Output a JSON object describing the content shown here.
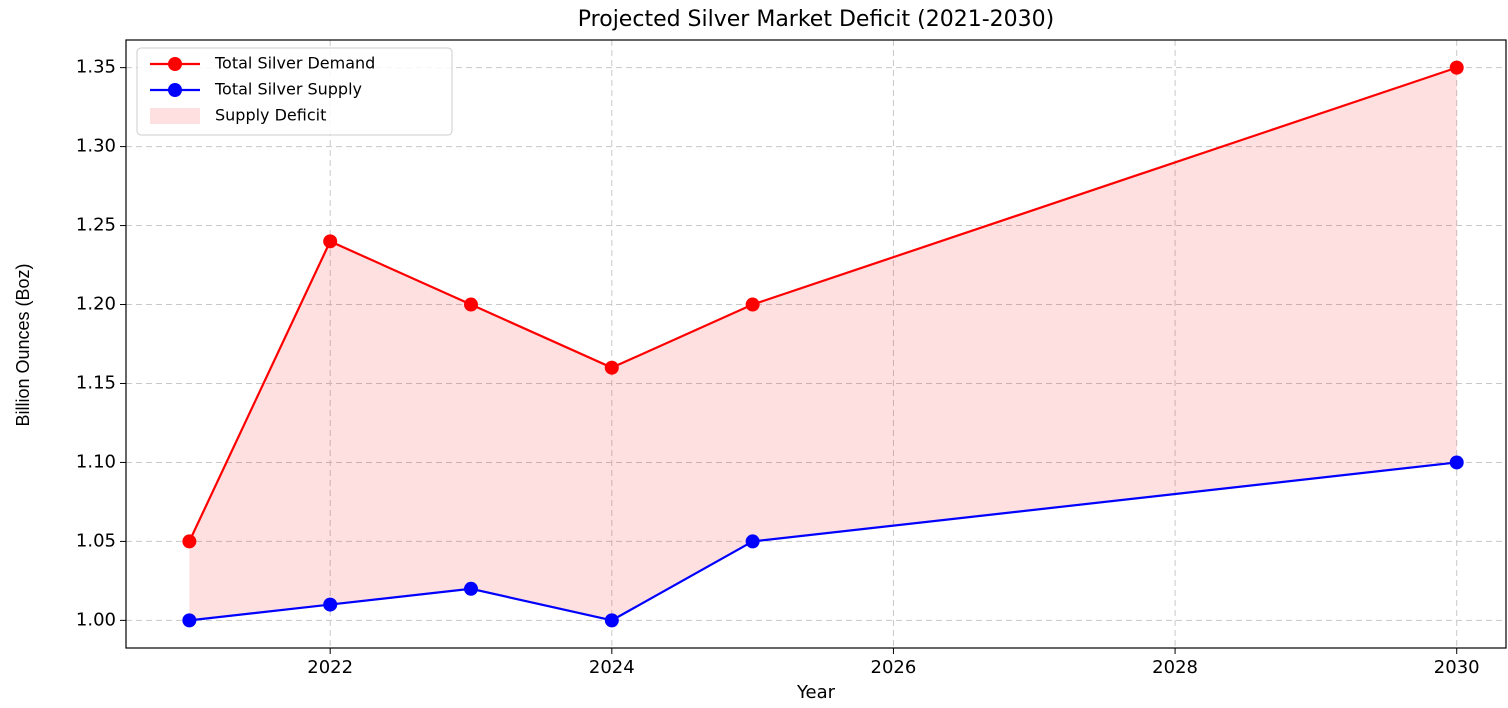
{
  "chart_data": {
    "type": "line",
    "title": "Projected Silver Market Deficit (2021-2030)",
    "xlabel": "Year",
    "ylabel": "Billion Ounces (Boz)",
    "x": [
      2021,
      2022,
      2023,
      2024,
      2025,
      2030
    ],
    "series": [
      {
        "name": "Total Silver Demand",
        "color": "#ff0000",
        "values": [
          1.05,
          1.24,
          1.2,
          1.16,
          1.2,
          1.35
        ]
      },
      {
        "name": "Total Silver Supply",
        "color": "#0000ff",
        "values": [
          1.0,
          1.01,
          1.02,
          1.0,
          1.05,
          1.1
        ]
      }
    ],
    "fill_between": {
      "name": "Supply Deficit",
      "color": "#ff0000",
      "alpha": 0.12
    },
    "xlim": [
      2020.55,
      2030.35
    ],
    "xticks": [
      2022,
      2024,
      2026,
      2028,
      2030
    ],
    "ylim": [
      0.9825,
      1.3675
    ],
    "yticks": [
      {
        "value": 1.0,
        "label": "1.00"
      },
      1.05,
      {
        "value": 1.1,
        "label": "1.10"
      },
      1.15,
      {
        "value": 1.2,
        "label": "1.20"
      },
      1.25,
      {
        "value": 1.3,
        "label": "1.30"
      },
      1.35
    ],
    "grid": true,
    "legend": "upper left"
  }
}
